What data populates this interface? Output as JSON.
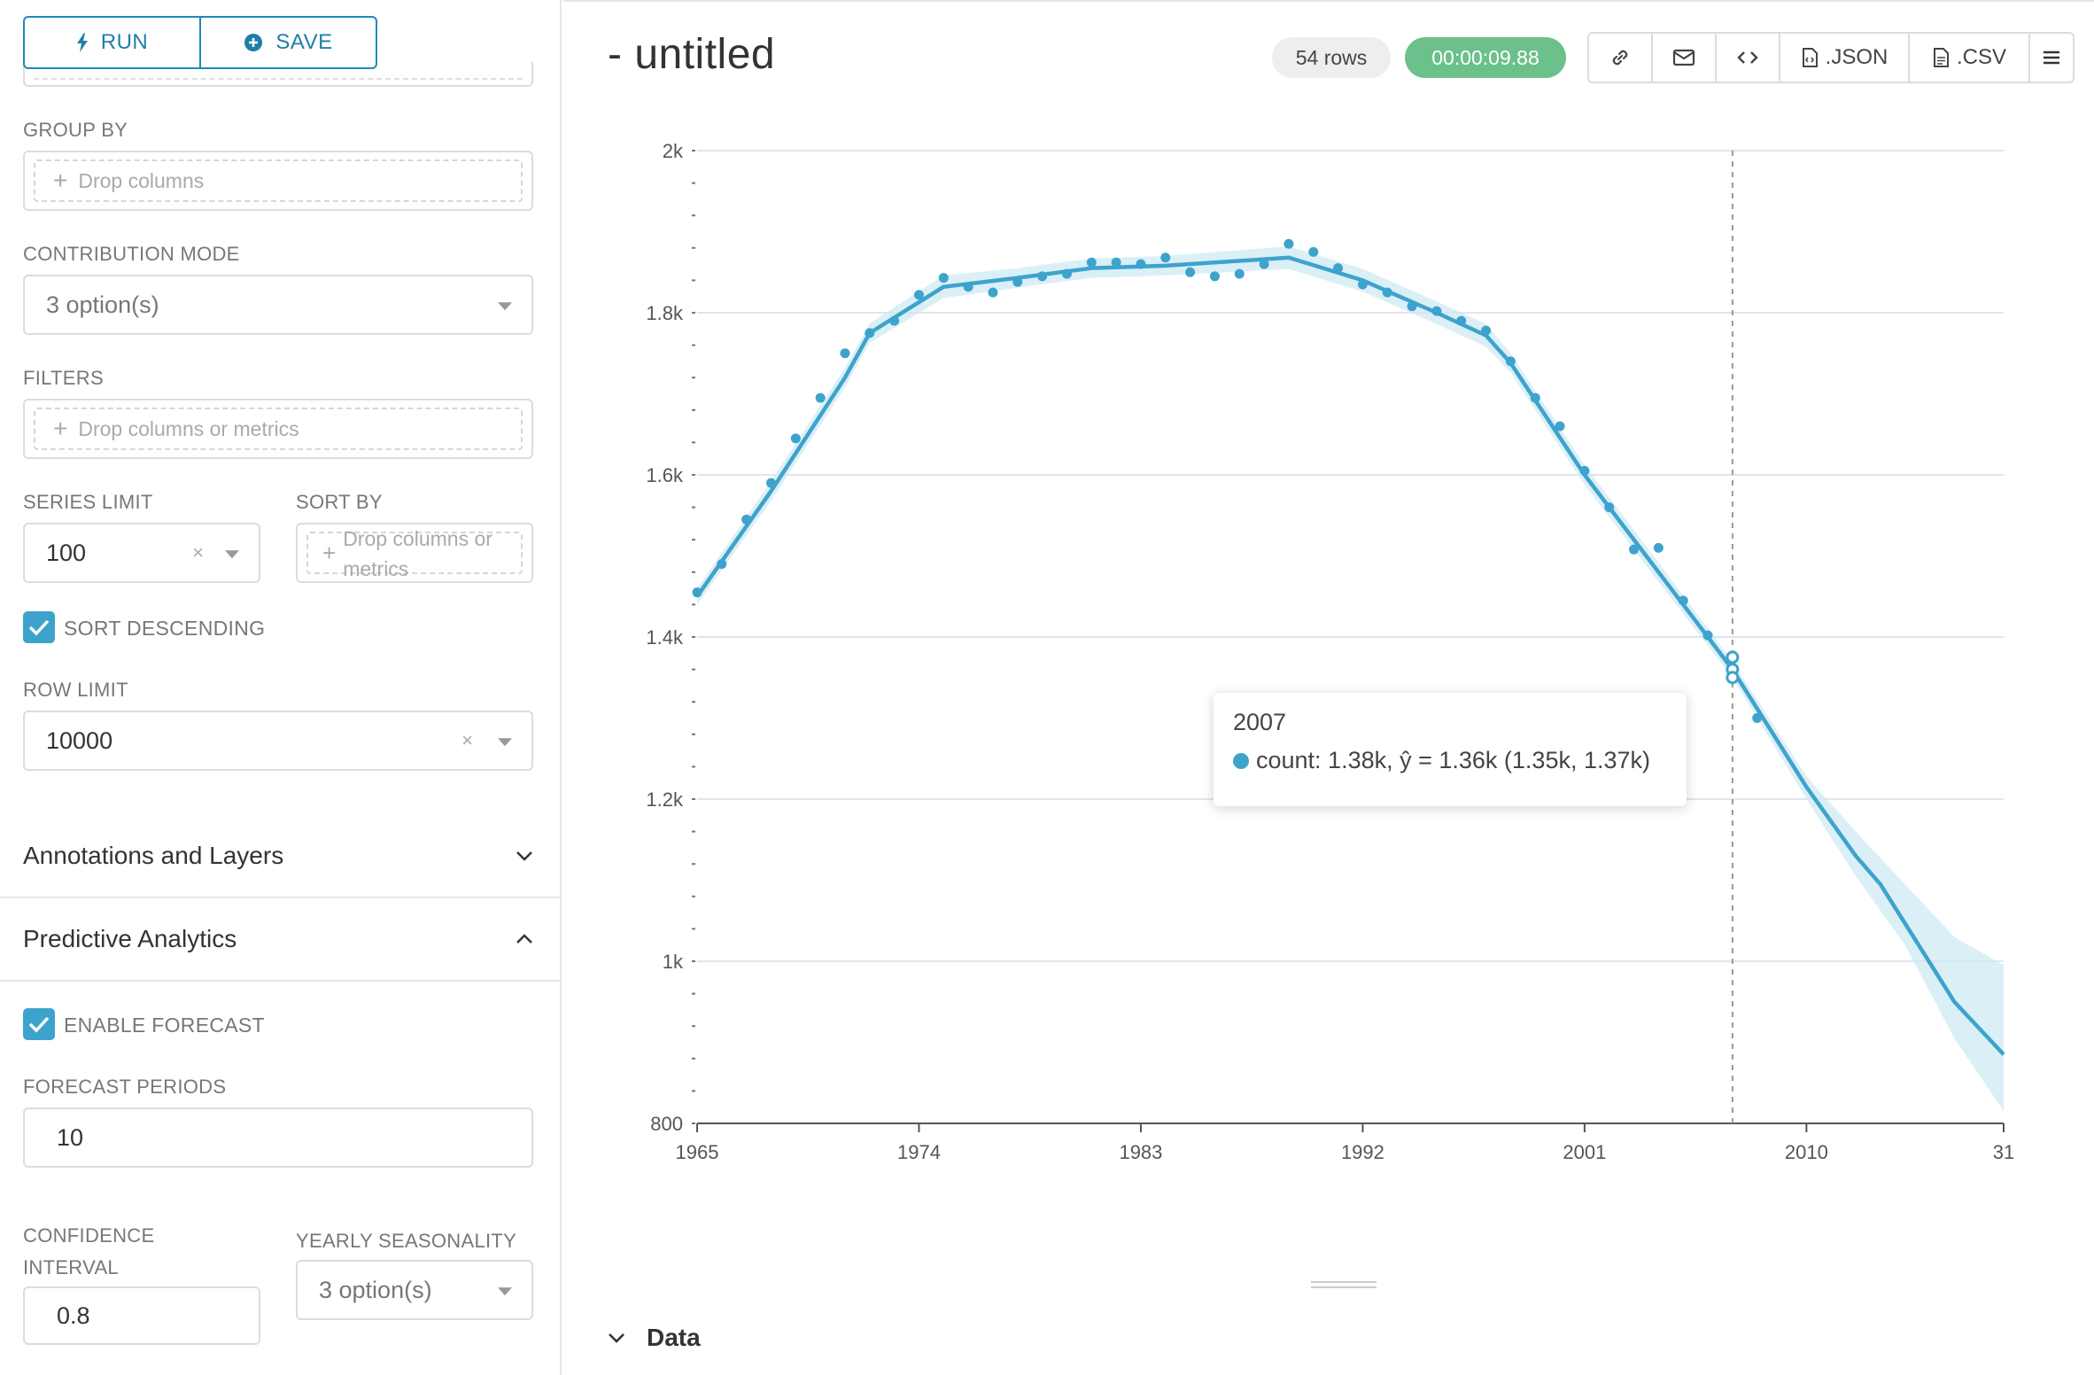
{
  "controls": {
    "run_label": "RUN",
    "save_label": "SAVE",
    "group_by": {
      "label": "GROUP BY",
      "placeholder": "Drop columns"
    },
    "contribution_mode": {
      "label": "CONTRIBUTION MODE",
      "value": "3 option(s)"
    },
    "filters": {
      "label": "FILTERS",
      "placeholder": "Drop columns or metrics"
    },
    "series_limit": {
      "label": "SERIES LIMIT",
      "value": "100",
      "clear": "×"
    },
    "sort_by": {
      "label": "SORT BY",
      "placeholder_line1": "Drop columns or",
      "placeholder_line2": "metrics"
    },
    "sort_descending": {
      "label": "SORT DESCENDING",
      "checked": true
    },
    "row_limit": {
      "label": "ROW LIMIT",
      "value": "10000",
      "clear": "×"
    },
    "annotations_section": "Annotations and Layers",
    "predictive_section": "Predictive Analytics",
    "enable_forecast": {
      "label": "ENABLE FORECAST",
      "checked": true
    },
    "forecast_periods": {
      "label": "FORECAST PERIODS",
      "value": "10"
    },
    "confidence_interval": {
      "label_line1": "CONFIDENCE",
      "label_line2": "INTERVAL",
      "value": "0.8"
    },
    "yearly_seasonality": {
      "label": "YEARLY SEASONALITY",
      "value": "3 option(s)"
    }
  },
  "header": {
    "title": "- untitled",
    "rows_badge": "54 rows",
    "timer": "00:00:09.88",
    "json_label": ".JSON",
    "csv_label": ".CSV"
  },
  "colors": {
    "accent": "#3ea3cc",
    "timer_bg": "#6cc08b",
    "band": "#cfe9f4"
  },
  "tooltip": {
    "year": "2007",
    "text": "count: 1.38k, ŷ = 1.36k (1.35k, 1.37k)"
  },
  "data_section": {
    "label": "Data"
  },
  "chart_data": {
    "type": "line",
    "x_ticks": [
      "1965",
      "1974",
      "1983",
      "1992",
      "2001",
      "2010",
      "31"
    ],
    "y_ticks": [
      "800",
      "1k",
      "1.2k",
      "1.4k",
      "1.6k",
      "1.8k",
      "2k"
    ],
    "xlim": [
      1965,
      2018
    ],
    "ylim": [
      800,
      2000
    ],
    "hover_x": 2007,
    "series": [
      {
        "name": "count",
        "kind": "observed",
        "points": [
          [
            1965,
            1455
          ],
          [
            1966,
            1490
          ],
          [
            1967,
            1545
          ],
          [
            1968,
            1590
          ],
          [
            1969,
            1645
          ],
          [
            1970,
            1695
          ],
          [
            1971,
            1750
          ],
          [
            1972,
            1775
          ],
          [
            1973,
            1790
          ],
          [
            1974,
            1822
          ],
          [
            1975,
            1843
          ],
          [
            1976,
            1832
          ],
          [
            1977,
            1825
          ],
          [
            1978,
            1838
          ],
          [
            1979,
            1845
          ],
          [
            1980,
            1848
          ],
          [
            1981,
            1862
          ],
          [
            1982,
            1862
          ],
          [
            1983,
            1860
          ],
          [
            1984,
            1868
          ],
          [
            1985,
            1850
          ],
          [
            1986,
            1845
          ],
          [
            1987,
            1848
          ],
          [
            1988,
            1860
          ],
          [
            1989,
            1885
          ],
          [
            1990,
            1875
          ],
          [
            1991,
            1855
          ],
          [
            1992,
            1835
          ],
          [
            1993,
            1825
          ],
          [
            1994,
            1808
          ],
          [
            1995,
            1802
          ],
          [
            1996,
            1790
          ],
          [
            1997,
            1778
          ],
          [
            1998,
            1740
          ],
          [
            1999,
            1695
          ],
          [
            2000,
            1660
          ],
          [
            2001,
            1605
          ],
          [
            2002,
            1560
          ],
          [
            2003,
            1508
          ],
          [
            2004,
            1510
          ],
          [
            2005,
            1445
          ],
          [
            2006,
            1402
          ],
          [
            2007,
            1375
          ],
          [
            2008,
            1300
          ]
        ]
      },
      {
        "name": "ŷ",
        "kind": "forecast",
        "points": [
          [
            1965,
            1450
          ],
          [
            1968,
            1580
          ],
          [
            1971,
            1720
          ],
          [
            1972,
            1775
          ],
          [
            1975,
            1832
          ],
          [
            1978,
            1843
          ],
          [
            1981,
            1855
          ],
          [
            1984,
            1858
          ],
          [
            1989,
            1868
          ],
          [
            1992,
            1840
          ],
          [
            1995,
            1800
          ],
          [
            1997,
            1772
          ],
          [
            1998,
            1738
          ],
          [
            2001,
            1600
          ],
          [
            2004,
            1480
          ],
          [
            2007,
            1360
          ],
          [
            2010,
            1215
          ],
          [
            2012,
            1130
          ],
          [
            2013,
            1095
          ],
          [
            2016,
            950
          ],
          [
            2018,
            885
          ]
        ]
      },
      {
        "name": "ŷ upper",
        "kind": "band_upper",
        "points": [
          [
            1965,
            1460
          ],
          [
            1968,
            1592
          ],
          [
            1971,
            1732
          ],
          [
            1972,
            1787
          ],
          [
            1975,
            1846
          ],
          [
            1978,
            1855
          ],
          [
            1981,
            1867
          ],
          [
            1984,
            1870
          ],
          [
            1989,
            1882
          ],
          [
            1992,
            1854
          ],
          [
            1995,
            1814
          ],
          [
            1997,
            1786
          ],
          [
            1998,
            1750
          ],
          [
            2001,
            1612
          ],
          [
            2004,
            1492
          ],
          [
            2007,
            1370
          ],
          [
            2010,
            1228
          ],
          [
            2012,
            1160
          ],
          [
            2014,
            1095
          ],
          [
            2016,
            1030
          ],
          [
            2018,
            995
          ]
        ]
      },
      {
        "name": "ŷ lower",
        "kind": "band_lower",
        "points": [
          [
            1965,
            1440
          ],
          [
            1968,
            1568
          ],
          [
            1971,
            1708
          ],
          [
            1972,
            1763
          ],
          [
            1975,
            1818
          ],
          [
            1978,
            1831
          ],
          [
            1981,
            1843
          ],
          [
            1984,
            1846
          ],
          [
            1989,
            1854
          ],
          [
            1992,
            1826
          ],
          [
            1995,
            1786
          ],
          [
            1997,
            1758
          ],
          [
            1998,
            1726
          ],
          [
            2001,
            1588
          ],
          [
            2004,
            1468
          ],
          [
            2007,
            1350
          ],
          [
            2010,
            1200
          ],
          [
            2012,
            1105
          ],
          [
            2014,
            1020
          ],
          [
            2016,
            905
          ],
          [
            2018,
            815
          ]
        ]
      }
    ],
    "hover_marker_values": [
      1375,
      1360,
      1350
    ]
  }
}
